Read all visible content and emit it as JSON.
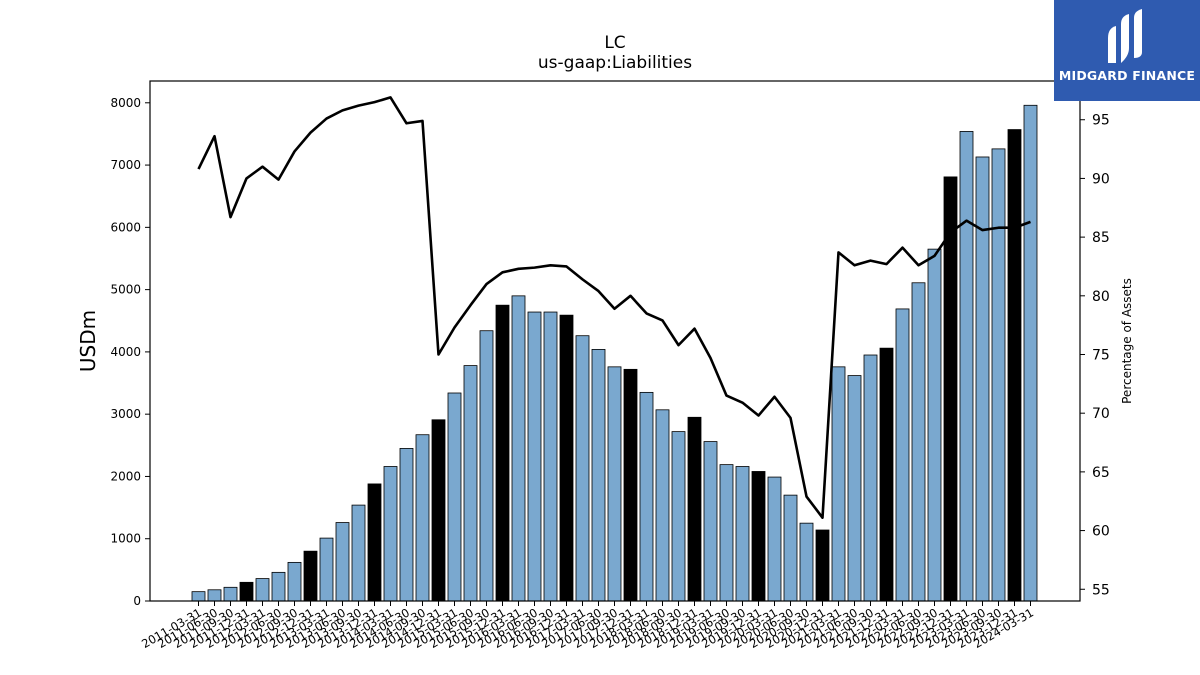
{
  "chart_data": {
    "type": "bar",
    "title": "LC",
    "subtitle": "us-gaap:Liabilities",
    "ylabel": "USDm",
    "ylabel_right": "Percentage of Assets",
    "ylim": [
      0,
      8350
    ],
    "ylim_right": [
      54,
      98.3
    ],
    "yticks": [
      0,
      1000,
      2000,
      3000,
      4000,
      5000,
      6000,
      7000,
      8000
    ],
    "yticks_right": [
      55,
      60,
      65,
      70,
      75,
      80,
      85,
      90,
      95
    ],
    "colors": {
      "bar": "#7aa8cf",
      "bar_highlight": "#000000",
      "line": "#000000"
    },
    "categories": [
      "2011-03-31",
      "2011-06-30",
      "2011-09-30",
      "2011-12-31",
      "2012-03-31",
      "2012-06-30",
      "2012-09-30",
      "2012-12-31",
      "2013-03-31",
      "2013-06-30",
      "2013-09-30",
      "2013-12-31",
      "2014-03-31",
      "2014-06-30",
      "2014-09-30",
      "2014-12-31",
      "2015-03-31",
      "2015-06-30",
      "2015-09-30",
      "2015-12-31",
      "2016-03-31",
      "2016-06-30",
      "2016-09-30",
      "2016-12-31",
      "2017-03-31",
      "2017-06-30",
      "2017-09-30",
      "2017-12-31",
      "2018-03-31",
      "2018-06-30",
      "2018-09-30",
      "2018-12-31",
      "2019-03-31",
      "2019-06-30",
      "2019-09-30",
      "2019-12-31",
      "2020-03-31",
      "2020-06-30",
      "2020-09-30",
      "2020-12-31",
      "2021-03-31",
      "2021-06-30",
      "2021-09-30",
      "2021-12-31",
      "2022-03-31",
      "2022-06-30",
      "2022-09-30",
      "2022-12-31",
      "2023-03-31",
      "2023-06-30",
      "2023-09-30",
      "2023-12-31",
      "2024-03-31"
    ],
    "series": [
      {
        "type": "bar",
        "axis": "left",
        "values": [
          150,
          180,
          220,
          300,
          360,
          460,
          620,
          800,
          1010,
          1260,
          1540,
          1880,
          2160,
          2450,
          2670,
          2910,
          3340,
          3780,
          4340,
          4750,
          4900,
          4640,
          4640,
          4590,
          4260,
          4040,
          3760,
          3720,
          3350,
          3070,
          2720,
          2950,
          2560,
          2190,
          2160,
          2080,
          1990,
          1700,
          1250,
          1140,
          3760,
          3620,
          3950,
          4060,
          4690,
          5110,
          5650,
          6810,
          7540,
          7130,
          7260,
          7570,
          7960
        ],
        "highlight": [
          false,
          false,
          false,
          true,
          false,
          false,
          false,
          true,
          false,
          false,
          false,
          true,
          false,
          false,
          false,
          true,
          false,
          false,
          false,
          true,
          false,
          false,
          false,
          true,
          false,
          false,
          false,
          true,
          false,
          false,
          false,
          true,
          false,
          false,
          false,
          true,
          false,
          false,
          false,
          true,
          false,
          false,
          false,
          true,
          false,
          false,
          false,
          true,
          false,
          false,
          false,
          true,
          false
        ]
      },
      {
        "type": "line",
        "axis": "right",
        "values": [
          90.8,
          93.6,
          86.7,
          90.0,
          91.0,
          89.9,
          92.3,
          93.9,
          95.1,
          95.8,
          96.2,
          96.5,
          96.9,
          94.7,
          94.9,
          75.0,
          77.3,
          79.2,
          81.0,
          82.0,
          82.3,
          82.4,
          82.6,
          82.5,
          81.4,
          80.4,
          78.9,
          80.0,
          78.5,
          77.9,
          75.8,
          77.2,
          74.7,
          71.5,
          70.9,
          69.8,
          71.4,
          69.6,
          62.9,
          61.1,
          83.7,
          82.6,
          83.0,
          82.7,
          84.1,
          82.6,
          83.4,
          85.4,
          86.4,
          85.6,
          85.8,
          85.8,
          86.3
        ]
      }
    ]
  },
  "logo": {
    "text": "MIDGARD FINANCE"
  }
}
